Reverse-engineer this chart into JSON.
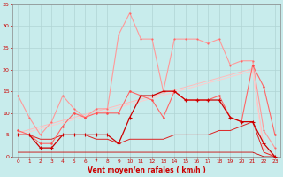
{
  "x": [
    0,
    1,
    2,
    3,
    4,
    5,
    6,
    7,
    8,
    9,
    10,
    11,
    12,
    13,
    14,
    15,
    16,
    17,
    18,
    19,
    20,
    21,
    22,
    23
  ],
  "line_rafales": [
    14,
    9,
    5,
    8,
    14,
    11,
    9,
    11,
    11,
    28,
    33,
    27,
    27,
    15,
    27,
    27,
    27,
    26,
    27,
    21,
    22,
    22,
    6,
    2
  ],
  "line_moyen": [
    6,
    5,
    3,
    3,
    7,
    10,
    9,
    10,
    10,
    10,
    15,
    14,
    13,
    9,
    15,
    13,
    13,
    13,
    14,
    9,
    8,
    21,
    16,
    5
  ],
  "line_dark_plus": [
    5,
    5,
    2,
    2,
    5,
    5,
    5,
    5,
    5,
    3,
    9,
    14,
    14,
    15,
    15,
    13,
    13,
    13,
    13,
    9,
    8,
    8,
    3,
    0
  ],
  "line_lin1": [
    5.5,
    6.2,
    6.9,
    7.6,
    8.3,
    9.0,
    9.7,
    10.4,
    11.1,
    11.8,
    12.5,
    13.2,
    13.9,
    14.6,
    15.3,
    16.0,
    16.7,
    17.4,
    18.1,
    18.8,
    19.5,
    20.2,
    2,
    0
  ],
  "line_lin2": [
    5.0,
    5.7,
    6.4,
    7.1,
    7.8,
    8.5,
    9.2,
    9.9,
    10.6,
    11.3,
    12.0,
    12.7,
    13.4,
    14.1,
    14.8,
    15.5,
    16.2,
    16.9,
    17.6,
    18.3,
    19.0,
    19.7,
    1,
    0
  ],
  "line_flat1": [
    5,
    5,
    4,
    4,
    5,
    5,
    5,
    4,
    4,
    3,
    4,
    4,
    4,
    4,
    5,
    5,
    5,
    5,
    6,
    6,
    7,
    8,
    1,
    0
  ],
  "line_flat2": [
    1,
    1,
    1,
    1,
    1,
    1,
    1,
    1,
    1,
    1,
    1,
    1,
    1,
    1,
    1,
    1,
    1,
    1,
    1,
    1,
    1,
    1,
    0,
    0
  ],
  "bg_color": "#c8ecec",
  "grid_color": "#aacccc",
  "xlabel": "Vent moyen/en rafales ( km/h )",
  "xlabel_color": "#cc0000",
  "tick_color": "#cc0000",
  "ylim": [
    0,
    35
  ],
  "xlim_min": -0.5,
  "xlim_max": 23.5,
  "yticks": [
    0,
    5,
    10,
    15,
    20,
    25,
    30,
    35
  ]
}
